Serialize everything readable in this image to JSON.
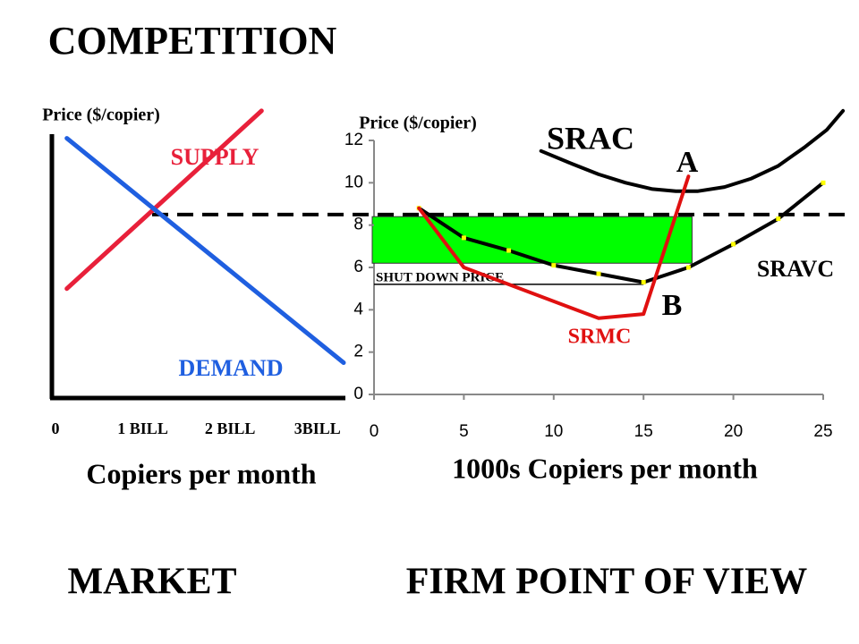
{
  "title": "COMPETITION",
  "chart_data": [
    {
      "type": "line",
      "title": "MARKET",
      "y_label": "Price ($/copier)",
      "x_label": "Copiers per month",
      "xlim": [
        0,
        3.3
      ],
      "ylim": [
        0,
        12
      ],
      "xticks": [
        0,
        {
          "value": 1,
          "label": "1 BILL"
        },
        {
          "value": 2,
          "label": "2 BILL"
        },
        {
          "value": 3,
          "label": "3BILL"
        }
      ],
      "series": [
        {
          "name": "SUPPLY",
          "color": "#e8203a",
          "x": [
            0.13,
            2.36
          ],
          "values": [
            5.0,
            13.4
          ]
        },
        {
          "name": "DEMAND",
          "color": "#1f5fe0",
          "x": [
            0.13,
            3.3
          ],
          "values": [
            12.1,
            1.5
          ]
        }
      ]
    },
    {
      "type": "line",
      "title": "FIRM POINT OF VIEW",
      "y_label": "Price ($/copier)",
      "x_label": "1000s Copiers per month",
      "xlim": [
        0,
        25
      ],
      "ylim": [
        0,
        12
      ],
      "xticks": [
        0,
        5,
        10,
        15,
        20,
        25
      ],
      "yticks": [
        0,
        2,
        4,
        6,
        8,
        10,
        12
      ],
      "price_level": 8.5,
      "shaded_region": {
        "color": "#00ff00",
        "x": [
          0,
          17.8
        ],
        "y": [
          6.2,
          8.4
        ]
      },
      "shutdown": {
        "label": "SHUT DOWN PRICE",
        "value": 5.2,
        "x": [
          0,
          15
        ]
      },
      "annotations": [
        "A",
        "B"
      ],
      "series": [
        {
          "name": "SRAC",
          "color": "#000000",
          "x": [
            9.3,
            11,
            12.5,
            14,
            15.5,
            16.8,
            18,
            19.5,
            21,
            22.5,
            24,
            25.2,
            26.1
          ],
          "values": [
            11.5,
            10.9,
            10.4,
            10.0,
            9.7,
            9.6,
            9.6,
            9.8,
            10.2,
            10.8,
            11.7,
            12.5,
            13.4
          ]
        },
        {
          "name": "SRAVC",
          "color": "#000000",
          "marker_color": "#ffff00",
          "x": [
            2.5,
            5,
            7.5,
            10,
            12.5,
            15,
            17.5,
            20,
            22.5,
            25
          ],
          "values": [
            8.8,
            7.4,
            6.8,
            6.1,
            5.7,
            5.3,
            6.0,
            7.1,
            8.3,
            10.0
          ]
        },
        {
          "name": "SRMC",
          "color": "#e01010",
          "x": [
            2.5,
            5,
            12.5,
            15,
            17.5
          ],
          "values": [
            8.8,
            6.0,
            3.6,
            3.8,
            10.3
          ]
        }
      ]
    }
  ]
}
